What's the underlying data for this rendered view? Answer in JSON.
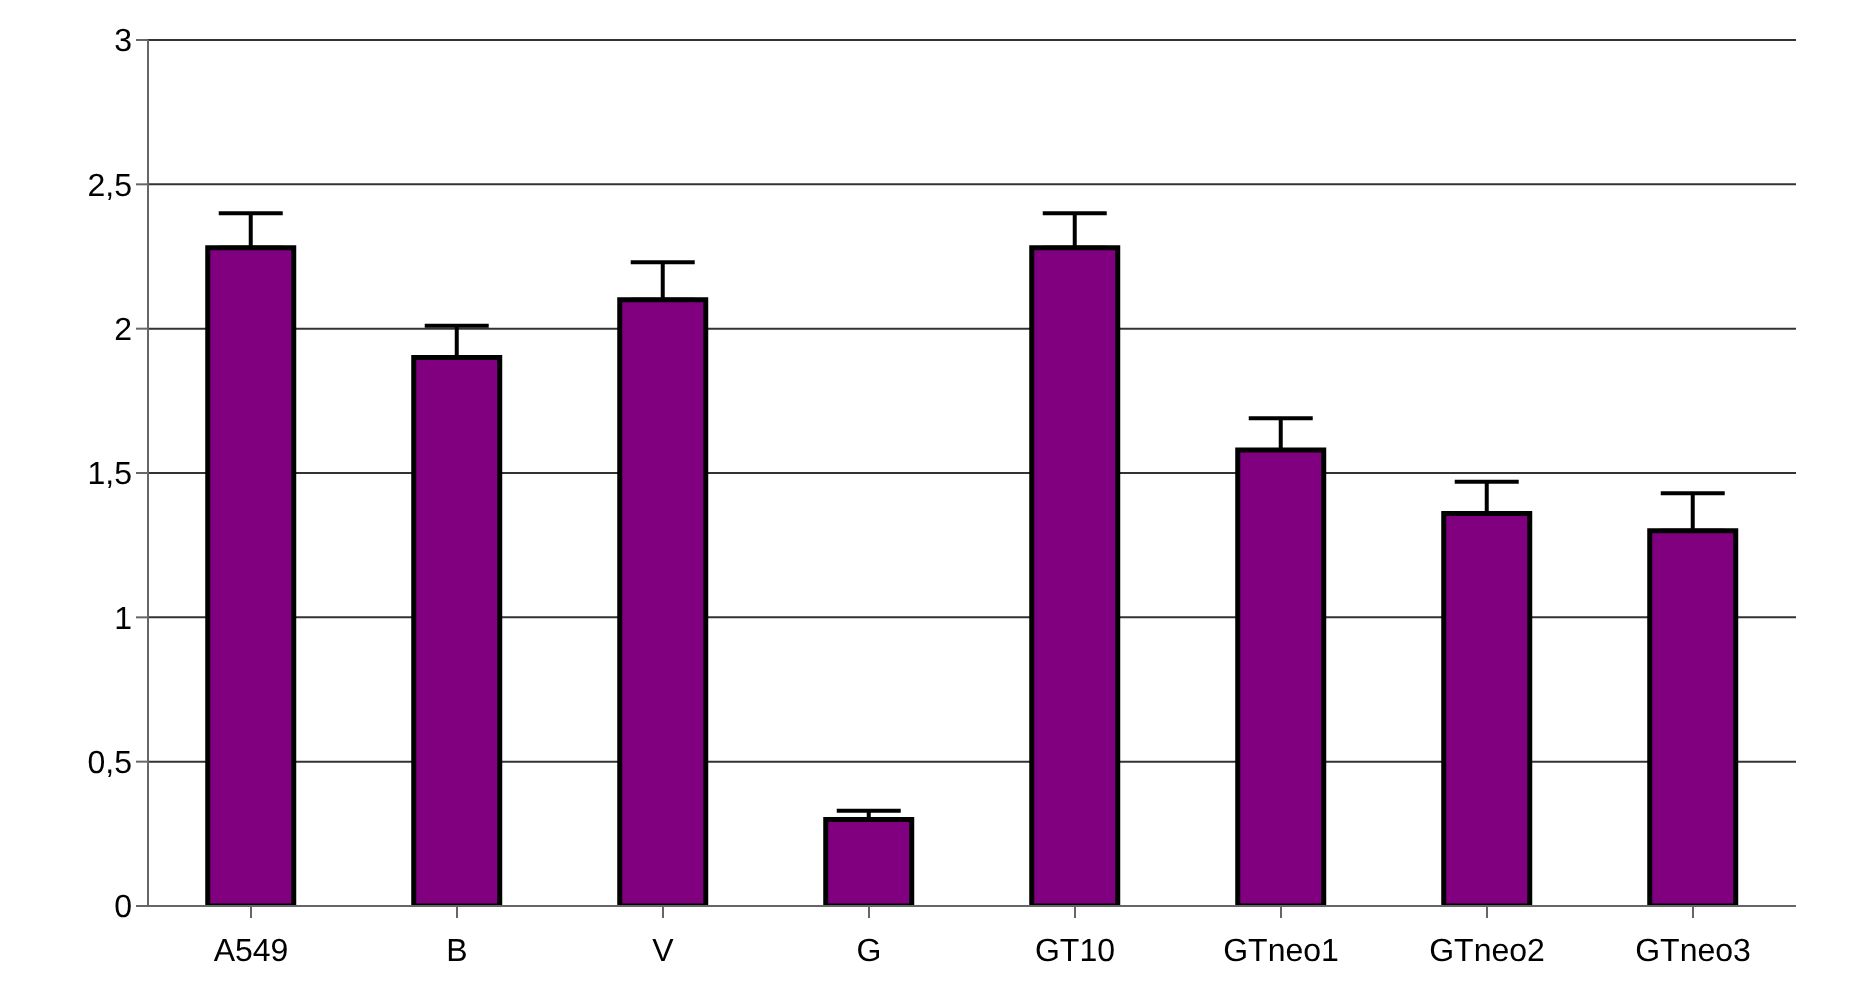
{
  "chart_data": {
    "type": "bar",
    "categories": [
      "A549",
      "B",
      "V",
      "G",
      "GT10",
      "GTneo1",
      "GTneo2",
      "GTneo3"
    ],
    "values": [
      2.28,
      1.9,
      2.1,
      0.3,
      2.28,
      1.58,
      1.36,
      1.3
    ],
    "errors": [
      [
        2.28,
        2.4
      ],
      [
        1.9,
        2.01
      ],
      [
        2.1,
        2.23
      ],
      [
        0.3,
        0.33
      ],
      [
        2.28,
        2.4
      ],
      [
        1.58,
        1.69
      ],
      [
        1.36,
        1.47
      ],
      [
        1.3,
        1.43
      ]
    ],
    "color": "#800080",
    "ylim": [
      0,
      3
    ],
    "yticks": [
      0,
      {
        "value": 0.5,
        "label": "0,5"
      },
      1,
      {
        "value": 1.5,
        "label": "1,5"
      },
      2,
      {
        "value": 2.5,
        "label": "2,5"
      },
      3
    ],
    "grid": "y"
  }
}
